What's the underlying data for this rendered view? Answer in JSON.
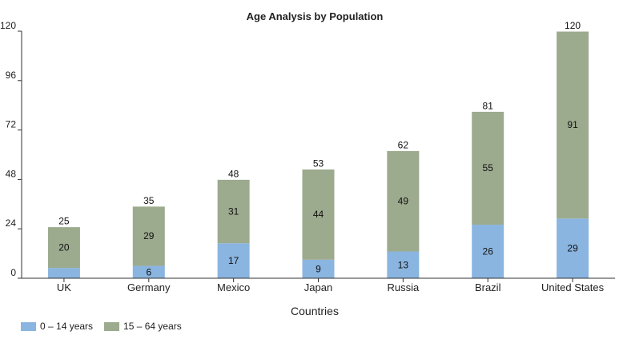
{
  "chart_data": {
    "type": "bar",
    "stacked": true,
    "title": "Age Analysis by Population",
    "xlabel": "Countries",
    "ylabel": "",
    "ylim": [
      0,
      120
    ],
    "yticks": [
      0,
      24,
      48,
      72,
      96,
      120
    ],
    "categories": [
      "UK",
      "Germany",
      "Mexico",
      "Japan",
      "Russia",
      "Brazil",
      "United States"
    ],
    "series": [
      {
        "name": "0 – 14 years",
        "color": "#8ab5e0",
        "values": [
          5,
          6,
          17,
          9,
          13,
          26,
          29
        ],
        "labels": [
          "",
          "6",
          "17",
          "9",
          "13",
          "26",
          "29"
        ]
      },
      {
        "name": "15 – 64 years",
        "color": "#9caa8e",
        "values": [
          20,
          29,
          31,
          44,
          49,
          55,
          91
        ],
        "labels": [
          "20",
          "29",
          "31",
          "44",
          "49",
          "55",
          "91"
        ]
      }
    ],
    "totals": [
      25,
      35,
      48,
      53,
      62,
      81,
      120
    ],
    "legend_position": "bottom-left",
    "grid": false
  }
}
